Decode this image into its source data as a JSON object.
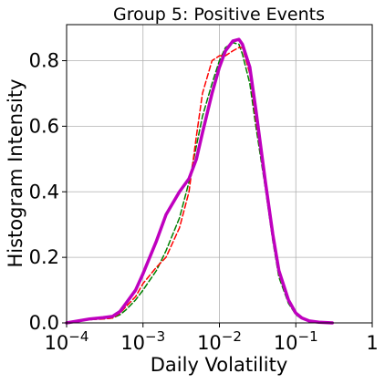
{
  "chart_data": {
    "type": "line",
    "title": "Group 5: Positive Events",
    "xlabel": "Daily Volatility",
    "ylabel": "Histogram Intensity",
    "x_scale": "log",
    "xlim": [
      0.0001,
      1
    ],
    "ylim": [
      0,
      0.91
    ],
    "x_ticks": [
      {
        "value": 0.0001,
        "base": "10",
        "exp": "−4",
        "text": ""
      },
      {
        "value": 0.001,
        "base": "10",
        "exp": "−3",
        "text": ""
      },
      {
        "value": 0.01,
        "base": "10",
        "exp": "−2",
        "text": ""
      },
      {
        "value": 0.1,
        "base": "10",
        "exp": "−1",
        "text": ""
      },
      {
        "value": 1,
        "base": "",
        "exp": "",
        "text": "1"
      }
    ],
    "y_ticks": [
      {
        "value": 0.0,
        "text": "0.0"
      },
      {
        "value": 0.2,
        "text": "0.2"
      },
      {
        "value": 0.4,
        "text": "0.4"
      },
      {
        "value": 0.6,
        "text": "0.6"
      },
      {
        "value": 0.8,
        "text": "0.8"
      }
    ],
    "grid": true,
    "legend": "none",
    "series": [
      {
        "color": "#008000",
        "style": "dashed",
        "width": 1.5,
        "x": [
          0.0001,
          0.0002,
          0.0003,
          0.0004,
          0.0005,
          0.0006,
          0.0008,
          0.001,
          0.0015,
          0.002,
          0.003,
          0.004,
          0.005,
          0.006,
          0.008,
          0.01,
          0.012,
          0.015,
          0.018,
          0.02,
          0.025,
          0.03,
          0.04,
          0.05,
          0.06,
          0.08,
          0.1,
          0.12,
          0.15,
          0.2,
          0.3
        ],
        "y": [
          0.0,
          0.01,
          0.012,
          0.015,
          0.025,
          0.04,
          0.07,
          0.1,
          0.16,
          0.22,
          0.32,
          0.43,
          0.54,
          0.63,
          0.73,
          0.8,
          0.84,
          0.855,
          0.85,
          0.82,
          0.73,
          0.6,
          0.41,
          0.25,
          0.14,
          0.06,
          0.025,
          0.012,
          0.005,
          0.002,
          0.0
        ]
      },
      {
        "color": "#ff0000",
        "style": "dashed",
        "width": 1.5,
        "x": [
          0.0001,
          0.0002,
          0.0003,
          0.0004,
          0.0005,
          0.0006,
          0.0008,
          0.001,
          0.0015,
          0.002,
          0.003,
          0.004,
          0.005,
          0.006,
          0.008,
          0.01,
          0.012,
          0.015,
          0.018,
          0.02,
          0.025,
          0.03,
          0.04,
          0.05,
          0.06,
          0.08,
          0.1,
          0.12,
          0.15,
          0.2,
          0.3
        ],
        "y": [
          0.0,
          0.01,
          0.012,
          0.015,
          0.03,
          0.05,
          0.08,
          0.12,
          0.17,
          0.2,
          0.29,
          0.4,
          0.57,
          0.7,
          0.8,
          0.815,
          0.815,
          0.83,
          0.84,
          0.84,
          0.76,
          0.62,
          0.42,
          0.26,
          0.15,
          0.065,
          0.03,
          0.015,
          0.007,
          0.003,
          0.001
        ]
      },
      {
        "color": "#bf00bf",
        "style": "solid",
        "width": 3.5,
        "x": [
          0.0001,
          0.0002,
          0.0003,
          0.0004,
          0.0005,
          0.0006,
          0.0008,
          0.001,
          0.0015,
          0.002,
          0.003,
          0.004,
          0.005,
          0.006,
          0.008,
          0.01,
          0.012,
          0.015,
          0.018,
          0.02,
          0.025,
          0.03,
          0.04,
          0.05,
          0.06,
          0.08,
          0.1,
          0.12,
          0.15,
          0.2,
          0.3
        ],
        "y": [
          0.0,
          0.012,
          0.016,
          0.02,
          0.035,
          0.06,
          0.1,
          0.15,
          0.25,
          0.33,
          0.4,
          0.44,
          0.5,
          0.58,
          0.7,
          0.78,
          0.83,
          0.86,
          0.865,
          0.85,
          0.78,
          0.65,
          0.43,
          0.27,
          0.16,
          0.07,
          0.03,
          0.015,
          0.006,
          0.002,
          0.0
        ]
      }
    ]
  }
}
